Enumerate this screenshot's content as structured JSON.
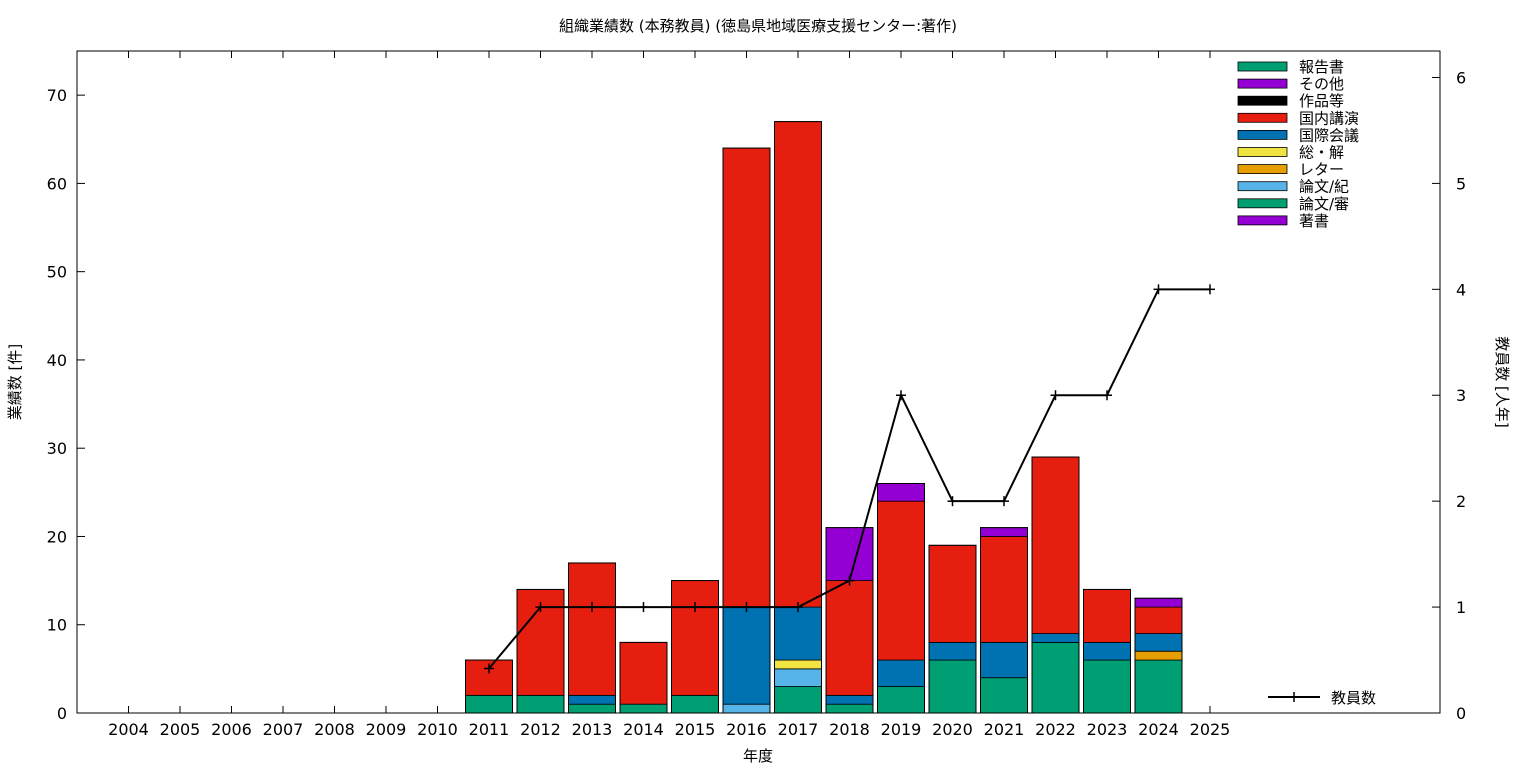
{
  "chart_data": {
    "type": "bar",
    "title": "組織業績数 (本務教員) (徳島県地域医療支援センター:著作)",
    "xlabel": "年度",
    "ylabel": "業績数 [件]",
    "y2label": "教員数 [人年]",
    "categories": [
      "2004",
      "2005",
      "2006",
      "2007",
      "2008",
      "2009",
      "2010",
      "2011",
      "2012",
      "2013",
      "2014",
      "2015",
      "2016",
      "2017",
      "2018",
      "2019",
      "2020",
      "2021",
      "2022",
      "2023",
      "2024",
      "2025"
    ],
    "ylim": [
      0,
      75
    ],
    "y2lim": [
      0,
      6.25
    ],
    "yticks": [
      0,
      10,
      20,
      30,
      40,
      50,
      60,
      70
    ],
    "y2ticks": [
      0,
      1,
      2,
      3,
      4,
      5,
      6
    ],
    "stacked": true,
    "legend_position": "top-right",
    "series": [
      {
        "name": "著書",
        "color": "#9400d3",
        "values": [
          0,
          0,
          0,
          0,
          0,
          0,
          0,
          0,
          0,
          0,
          0,
          0,
          0,
          0,
          0,
          0,
          0,
          0,
          0,
          0,
          0,
          0
        ]
      },
      {
        "name": "論文/審",
        "color": "#009e73",
        "values": [
          0,
          0,
          0,
          0,
          0,
          0,
          0,
          2,
          2,
          1,
          1,
          2,
          0,
          3,
          1,
          3,
          6,
          4,
          8,
          6,
          6,
          0
        ]
      },
      {
        "name": "論文/紀",
        "color": "#56b4e9",
        "values": [
          0,
          0,
          0,
          0,
          0,
          0,
          0,
          0,
          0,
          0,
          0,
          0,
          1,
          2,
          0,
          0,
          0,
          0,
          0,
          0,
          0,
          0
        ]
      },
      {
        "name": "レター",
        "color": "#e69f00",
        "values": [
          0,
          0,
          0,
          0,
          0,
          0,
          0,
          0,
          0,
          0,
          0,
          0,
          0,
          0,
          0,
          0,
          0,
          0,
          0,
          0,
          1,
          0
        ]
      },
      {
        "name": "総・解",
        "color": "#f0e442",
        "values": [
          0,
          0,
          0,
          0,
          0,
          0,
          0,
          0,
          0,
          0,
          0,
          0,
          0,
          1,
          0,
          0,
          0,
          0,
          0,
          0,
          0,
          0
        ]
      },
      {
        "name": "国際会議",
        "color": "#0072b2",
        "values": [
          0,
          0,
          0,
          0,
          0,
          0,
          0,
          0,
          0,
          1,
          0,
          0,
          11,
          6,
          1,
          3,
          2,
          4,
          1,
          2,
          2,
          0
        ]
      },
      {
        "name": "国内講演",
        "color": "#e51e10",
        "values": [
          0,
          0,
          0,
          0,
          0,
          0,
          0,
          4,
          12,
          15,
          7,
          13,
          52,
          55,
          13,
          18,
          11,
          12,
          20,
          6,
          3,
          0
        ]
      },
      {
        "name": "作品等",
        "color": "#000000",
        "values": [
          0,
          0,
          0,
          0,
          0,
          0,
          0,
          0,
          0,
          0,
          0,
          0,
          0,
          0,
          0,
          0,
          0,
          0,
          0,
          0,
          0,
          0
        ]
      },
      {
        "name": "その他",
        "color": "#9400d3",
        "values": [
          0,
          0,
          0,
          0,
          0,
          0,
          0,
          0,
          0,
          0,
          0,
          0,
          0,
          0,
          6,
          2,
          0,
          1,
          0,
          0,
          1,
          0
        ]
      },
      {
        "name": "報告書",
        "color": "#009e73",
        "values": [
          0,
          0,
          0,
          0,
          0,
          0,
          0,
          0,
          0,
          0,
          0,
          0,
          0,
          0,
          0,
          0,
          0,
          0,
          0,
          0,
          0,
          0
        ]
      }
    ],
    "line_series": {
      "name": "教員数",
      "axis": "right",
      "color": "#000000",
      "x": [
        "2011",
        "2012",
        "2013",
        "2014",
        "2015",
        "2016",
        "2017",
        "2018",
        "2019",
        "2020",
        "2021",
        "2022",
        "2023",
        "2024",
        "2025"
      ],
      "values": [
        0.42,
        1,
        1,
        1,
        1,
        1,
        1,
        1.25,
        3,
        2,
        2,
        3,
        3,
        4,
        4
      ]
    }
  }
}
